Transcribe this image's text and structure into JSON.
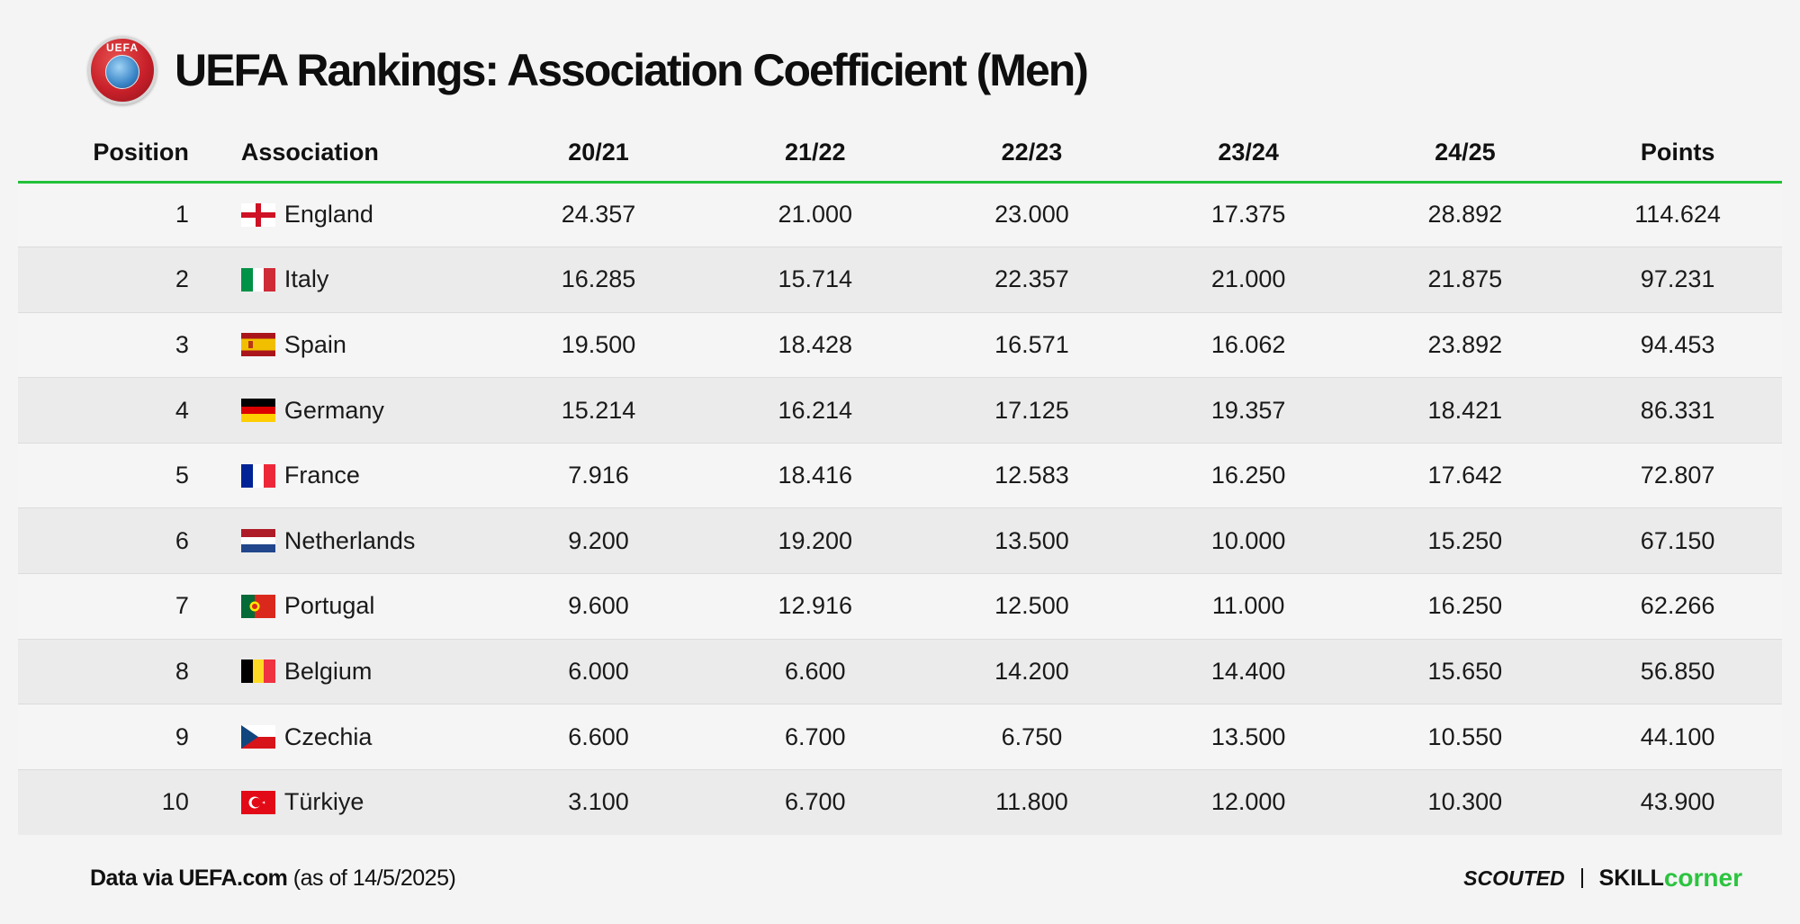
{
  "title": "UEFA Rankings: Association Coefficient (Men)",
  "logo_text": "UEFA",
  "columns": {
    "position": "Position",
    "association": "Association",
    "s1": "20/21",
    "s2": "21/22",
    "s3": "22/23",
    "s4": "23/24",
    "s5": "24/25",
    "points": "Points"
  },
  "chart_data": {
    "type": "table",
    "title": "UEFA Rankings: Association Coefficient (Men)",
    "headers": [
      "Position",
      "Association",
      "20/21",
      "21/22",
      "22/23",
      "23/24",
      "24/25",
      "Points"
    ],
    "rows": [
      {
        "position": "1",
        "association": "England",
        "flag": "england-flag-icon",
        "s1": "24.357",
        "s2": "21.000",
        "s3": "23.000",
        "s4": "17.375",
        "s5": "28.892",
        "points": "114.624"
      },
      {
        "position": "2",
        "association": "Italy",
        "flag": "italy-flag-icon",
        "s1": "16.285",
        "s2": "15.714",
        "s3": "22.357",
        "s4": "21.000",
        "s5": "21.875",
        "points": "97.231"
      },
      {
        "position": "3",
        "association": "Spain",
        "flag": "spain-flag-icon",
        "s1": "19.500",
        "s2": "18.428",
        "s3": "16.571",
        "s4": "16.062",
        "s5": "23.892",
        "points": "94.453"
      },
      {
        "position": "4",
        "association": "Germany",
        "flag": "germany-flag-icon",
        "s1": "15.214",
        "s2": "16.214",
        "s3": "17.125",
        "s4": "19.357",
        "s5": "18.421",
        "points": "86.331"
      },
      {
        "position": "5",
        "association": "France",
        "flag": "france-flag-icon",
        "s1": "7.916",
        "s2": "18.416",
        "s3": "12.583",
        "s4": "16.250",
        "s5": "17.642",
        "points": "72.807"
      },
      {
        "position": "6",
        "association": "Netherlands",
        "flag": "netherlands-flag-icon",
        "s1": "9.200",
        "s2": "19.200",
        "s3": "13.500",
        "s4": "10.000",
        "s5": "15.250",
        "points": "67.150"
      },
      {
        "position": "7",
        "association": "Portugal",
        "flag": "portugal-flag-icon",
        "s1": "9.600",
        "s2": "12.916",
        "s3": "12.500",
        "s4": "11.000",
        "s5": "16.250",
        "points": "62.266"
      },
      {
        "position": "8",
        "association": "Belgium",
        "flag": "belgium-flag-icon",
        "s1": "6.000",
        "s2": "6.600",
        "s3": "14.200",
        "s4": "14.400",
        "s5": "15.650",
        "points": "56.850"
      },
      {
        "position": "9",
        "association": "Czechia",
        "flag": "czechia-flag-icon",
        "s1": "6.600",
        "s2": "6.700",
        "s3": "6.750",
        "s4": "13.500",
        "s5": "10.550",
        "points": "44.100"
      },
      {
        "position": "10",
        "association": "Türkiye",
        "flag": "turkiye-flag-icon",
        "s1": "3.100",
        "s2": "6.700",
        "s3": "11.800",
        "s4": "12.000",
        "s5": "10.300",
        "points": "43.900"
      }
    ]
  },
  "footer": {
    "source_bold": "Data via UEFA.com",
    "source_rest": " (as of 14/5/2025)",
    "brand1": "SCOUTED",
    "brand2_a": "SKILL",
    "brand2_b": "corner"
  },
  "colors": {
    "accent_green": "#22c03a",
    "row_light": "#f5f5f5",
    "row_dark": "#ebebeb"
  }
}
